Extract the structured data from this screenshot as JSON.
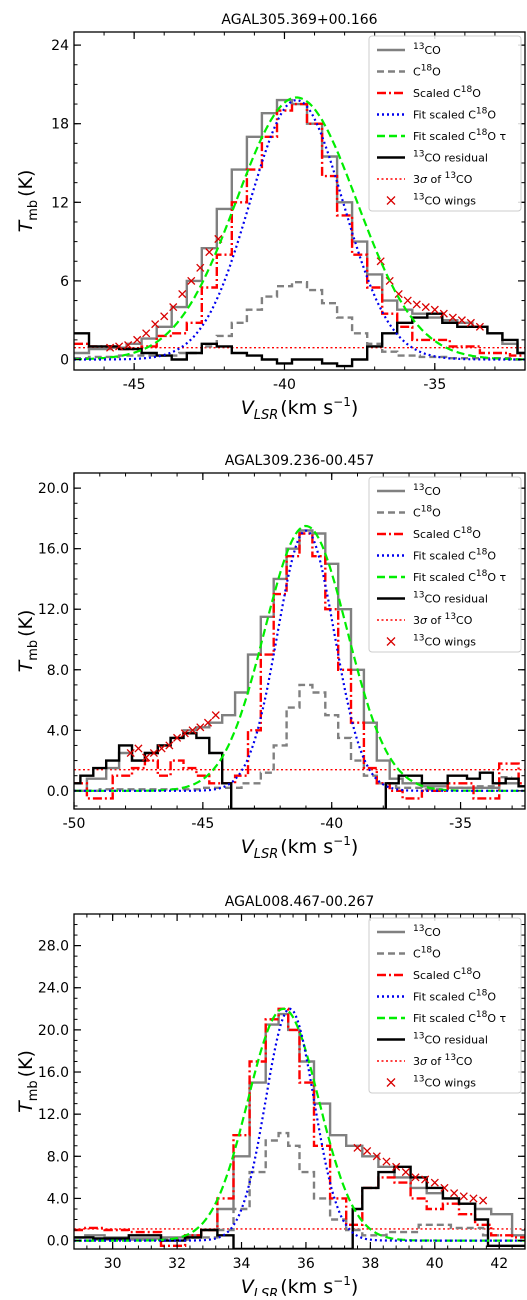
{
  "chart_data": [
    {
      "type": "line",
      "title": "AGAL305.369+00.166",
      "xlabel": "V_LSR (km s^-1)",
      "ylabel": "T_mb (K)",
      "xlim": [
        -47,
        -32
      ],
      "ylim": [
        -0.8,
        25
      ],
      "xticks": [
        -45,
        -40,
        -35
      ],
      "xtick_labels": [
        "-45",
        "-40",
        "-35"
      ],
      "yticks": [
        0,
        6,
        12,
        18,
        24
      ],
      "ytick_labels": [
        "0",
        "6",
        "12",
        "18",
        "24"
      ],
      "legend_position": "top-right",
      "legend": [
        "13CO",
        "C18O",
        "Scaled C18O",
        "Fit scaled C18O",
        "Fit scaled C18O τ",
        "13CO residual",
        "3σ of 13CO",
        "13CO wings"
      ],
      "sigma3": 0.9,
      "gauss": {
        "center": -39.6,
        "sigma": 1.55,
        "amp": 19.8
      },
      "gauss_tau": {
        "center": -39.6,
        "sigma": 2.0,
        "amp": 20.0
      },
      "series": [
        {
          "name": "13CO",
          "x": [
            -47,
            -46,
            -45.5,
            -45,
            -44.5,
            -44,
            -43.5,
            -43,
            -42.5,
            -42,
            -41.5,
            -41,
            -40.5,
            -40,
            -39.5,
            -39,
            -38.5,
            -38,
            -37.5,
            -37,
            -36.5,
            -36,
            -35.5,
            -35,
            -34.5,
            -34,
            -33.5,
            -33,
            -32.5,
            -32
          ],
          "y": [
            0.5,
            0.8,
            0.9,
            1.2,
            1.6,
            2.5,
            4.0,
            6.0,
            8.5,
            11.5,
            14.5,
            17.0,
            18.8,
            19.8,
            19.5,
            18.0,
            15.5,
            12.0,
            9.0,
            6.5,
            4.5,
            3.8,
            3.5,
            3.2,
            3.0,
            2.8,
            2.5,
            2.0,
            1.2,
            0.5
          ]
        },
        {
          "name": "C18O",
          "x": [
            -47,
            -46,
            -45,
            -44,
            -43,
            -42.5,
            -42,
            -41.5,
            -41,
            -40.5,
            -40,
            -39.5,
            -39,
            -38.5,
            -38,
            -37.5,
            -37,
            -36.5,
            -36,
            -35,
            -34,
            -33,
            -32
          ],
          "y": [
            0.1,
            0.2,
            0.3,
            0.3,
            0.5,
            1.0,
            1.8,
            2.8,
            3.8,
            4.8,
            5.6,
            5.9,
            5.3,
            4.3,
            3.2,
            2.0,
            1.2,
            0.6,
            0.3,
            0.2,
            0.1,
            0.1,
            0.0
          ]
        },
        {
          "name": "Scaled C18O",
          "x": [
            -47,
            -46,
            -45,
            -44.5,
            -44,
            -43.5,
            -43,
            -42.5,
            -42,
            -41.5,
            -41,
            -40.5,
            -40,
            -39.5,
            -39,
            -38.5,
            -38,
            -37.5,
            -37,
            -36.5,
            -36,
            -35.5,
            -35,
            -34,
            -33,
            -32
          ],
          "y": [
            1.2,
            1.0,
            0.8,
            1.0,
            1.8,
            2.0,
            2.8,
            5.5,
            8.0,
            12.0,
            14.5,
            17.0,
            19.0,
            19.5,
            18.0,
            14.0,
            11.0,
            8.0,
            5.5,
            3.5,
            2.5,
            1.5,
            1.5,
            1.0,
            0.5,
            0.3
          ]
        },
        {
          "name": "13CO residual",
          "x": [
            -47,
            -46,
            -45,
            -44.5,
            -44,
            -43.5,
            -43,
            -42.5,
            -42,
            -41.5,
            -41,
            -40.5,
            -40,
            -39.5,
            -39,
            -38.5,
            -38,
            -37.5,
            -37,
            -36.5,
            -36,
            -35.5,
            -35,
            -34.5,
            -34,
            -33.5,
            -33,
            -32.5,
            -32
          ],
          "y": [
            2.0,
            1.0,
            0.8,
            0.5,
            0.3,
            0.0,
            0.5,
            1.2,
            1.0,
            0.5,
            0.3,
            0.0,
            -0.3,
            0.0,
            0.0,
            -0.3,
            -0.5,
            0.0,
            1.0,
            2.0,
            2.8,
            3.2,
            3.5,
            2.8,
            2.5,
            2.5,
            2.0,
            1.5,
            0.5
          ]
        },
        {
          "name": "13CO wings",
          "x": [
            -45.8,
            -45.5,
            -45.2,
            -44.9,
            -44.6,
            -44.3,
            -44.0,
            -43.7,
            -43.4,
            -43.1,
            -42.8,
            -42.5,
            -42.2,
            -36.8,
            -36.5,
            -36.2,
            -35.9,
            -35.6,
            -35.3,
            -35.0,
            -34.7,
            -34.4,
            -34.1,
            -33.8,
            -33.5
          ],
          "y": [
            0.9,
            1.0,
            1.1,
            1.5,
            2.0,
            2.7,
            3.3,
            4.0,
            5.0,
            6.0,
            7.0,
            8.2,
            9.2,
            7.5,
            6.0,
            5.0,
            4.5,
            4.2,
            4.0,
            3.8,
            3.5,
            3.2,
            3.0,
            2.8,
            2.5
          ]
        }
      ]
    },
    {
      "type": "line",
      "title": "AGAL309.236-00.457",
      "xlabel": "V_LSR (km s^-1)",
      "ylabel": "T_mb (K)",
      "xlim": [
        -50,
        -32.5
      ],
      "ylim": [
        -1.2,
        21
      ],
      "xticks": [
        -50,
        -45,
        -40,
        -35
      ],
      "xtick_labels": [
        "-50",
        "-45",
        "-40",
        "-35"
      ],
      "yticks": [
        0,
        4,
        8,
        12,
        16,
        20
      ],
      "ytick_labels": [
        "0.0",
        "4.0",
        "8.0",
        "12.0",
        "16.0",
        "20.0"
      ],
      "legend_position": "top-right",
      "legend": [
        "13CO",
        "C18O",
        "Scaled C18O",
        "Fit scaled C18O",
        "Fit scaled C18O τ",
        "13CO residual",
        "3σ of 13CO",
        "13CO wings"
      ],
      "sigma3": 1.4,
      "gauss": {
        "center": -41.0,
        "sigma": 1.1,
        "amp": 17.2
      },
      "gauss_tau": {
        "center": -41.0,
        "sigma": 1.6,
        "amp": 17.5
      },
      "series": [
        {
          "name": "13CO",
          "x": [
            -50,
            -49,
            -48.5,
            -48,
            -47.5,
            -47,
            -46.5,
            -46,
            -45.5,
            -45,
            -44.5,
            -44,
            -43.5,
            -43,
            -42.5,
            -42,
            -41.5,
            -41,
            -40.5,
            -40,
            -39.5,
            -39,
            -38.5,
            -38,
            -37.5,
            -37,
            -36,
            -35,
            -34,
            -33,
            -32.5
          ],
          "y": [
            0.0,
            0.8,
            1.5,
            2.5,
            2.0,
            2.5,
            3.0,
            3.5,
            4.0,
            4.2,
            4.5,
            5.0,
            6.5,
            9.0,
            11.5,
            14.0,
            16.0,
            17.2,
            17.0,
            15.0,
            12.0,
            8.0,
            4.5,
            2.0,
            0.8,
            0.5,
            0.3,
            0.2,
            0.2,
            0.5,
            0.3
          ]
        },
        {
          "name": "C18O",
          "x": [
            -50,
            -48,
            -46,
            -44,
            -43,
            -42.5,
            -42,
            -41.5,
            -41,
            -40.5,
            -40,
            -39.5,
            -39,
            -38.5,
            -38,
            -37,
            -36,
            -35,
            -34,
            -33
          ],
          "y": [
            0.0,
            0.1,
            0.1,
            0.2,
            0.5,
            1.2,
            3.0,
            5.5,
            7.0,
            6.5,
            5.0,
            3.5,
            2.0,
            1.0,
            0.5,
            0.2,
            0.1,
            0.2,
            0.3,
            0.9
          ]
        },
        {
          "name": "Scaled C18O",
          "x": [
            -50,
            -49,
            -48,
            -47.5,
            -47,
            -46.5,
            -46,
            -45.5,
            -45,
            -44.5,
            -44,
            -43.5,
            -43,
            -42.5,
            -42,
            -41.5,
            -41,
            -40.5,
            -40,
            -39.5,
            -39,
            -38.5,
            -38,
            -37.5,
            -37,
            -36,
            -35,
            -34,
            -33,
            -32.5
          ],
          "y": [
            0.5,
            -0.5,
            1.0,
            1.5,
            2.0,
            1.0,
            2.0,
            1.5,
            1.0,
            0.5,
            0.5,
            1.0,
            4.0,
            9.0,
            13.0,
            15.5,
            17.0,
            15.5,
            12.0,
            8.0,
            4.5,
            1.5,
            0.5,
            0.0,
            -0.5,
            0.0,
            0.5,
            -0.5,
            1.8,
            0.5
          ]
        },
        {
          "name": "13CO residual",
          "x": [
            -50,
            -49.5,
            -49,
            -48.5,
            -48,
            -47.5,
            -47,
            -46.5,
            -46,
            -45.5,
            -45,
            -44.5,
            -44,
            -43.8,
            -38,
            -37.8,
            -37,
            -36,
            -35,
            -34.5,
            -34,
            -33.5,
            -33,
            -32.5
          ],
          "y": [
            0.5,
            1.0,
            1.5,
            2.0,
            3.0,
            2.0,
            2.5,
            3.0,
            3.5,
            3.8,
            3.5,
            2.5,
            0.5,
            -1.2,
            -1.2,
            0.5,
            1.0,
            0.5,
            1.0,
            0.8,
            1.2,
            0.5,
            0.8,
            0.3
          ]
        },
        {
          "name": "13CO wings",
          "x": [
            -47.8,
            -47.5,
            -47.2,
            -46.9,
            -46.6,
            -46.3,
            -46.0,
            -45.7,
            -45.4,
            -45.1,
            -44.8,
            -44.5
          ],
          "y": [
            2.5,
            2.8,
            2.2,
            2.5,
            2.8,
            3.0,
            3.5,
            3.8,
            4.0,
            4.2,
            4.5,
            5.0
          ]
        }
      ]
    },
    {
      "type": "line",
      "title": "AGAL008.467-00.267",
      "xlabel": "V_LSR (km s^-1)",
      "ylabel": "T_mb (K)",
      "xlim": [
        28.8,
        42.8
      ],
      "ylim": [
        -0.8,
        31
      ],
      "xticks": [
        30,
        32,
        34,
        36,
        38,
        40,
        42
      ],
      "xtick_labels": [
        "30",
        "32",
        "34",
        "36",
        "38",
        "40",
        "42"
      ],
      "yticks": [
        0,
        4,
        8,
        12,
        16,
        20,
        24,
        28
      ],
      "ytick_labels": [
        "0.0",
        "4.0",
        "8.0",
        "12.0",
        "16.0",
        "20.0",
        "24.0",
        "28.0"
      ],
      "legend_position": "top-right",
      "legend": [
        "13CO",
        "C18O",
        "Scaled C18O",
        "Fit scaled C18O",
        "Fit scaled C18O τ",
        "13CO residual",
        "3σ of 13CO",
        "13CO wings"
      ],
      "sigma3": 1.1,
      "gauss": {
        "center": 35.5,
        "sigma": 0.75,
        "amp": 22.0
      },
      "gauss_tau": {
        "center": 35.3,
        "sigma": 1.1,
        "amp": 22.0
      },
      "series": [
        {
          "name": "13CO",
          "x": [
            28.8,
            29.5,
            30,
            31,
            32,
            32.5,
            33,
            33.5,
            34,
            34.5,
            35,
            35.3,
            35.6,
            36,
            36.5,
            37,
            37.5,
            38,
            38.5,
            39,
            39.5,
            40,
            40.5,
            41,
            41.5,
            42,
            42.8
          ],
          "y": [
            0.3,
            0.5,
            0.3,
            0.2,
            0.3,
            0.5,
            1.0,
            3.0,
            8.0,
            15.0,
            20.5,
            21.5,
            20.0,
            17.0,
            13.0,
            10.0,
            9.0,
            8.0,
            7.0,
            6.0,
            5.0,
            4.5,
            4.0,
            3.5,
            3.0,
            2.5,
            0.5
          ]
        },
        {
          "name": "C18O",
          "x": [
            28.8,
            30,
            32,
            33,
            33.5,
            34,
            34.5,
            35,
            35.3,
            35.6,
            36,
            36.5,
            37,
            37.5,
            38,
            39,
            40,
            41,
            42
          ],
          "y": [
            0.0,
            0.1,
            0.1,
            0.3,
            1.0,
            3.0,
            6.5,
            9.5,
            10.2,
            9.0,
            6.5,
            4.0,
            2.0,
            1.0,
            0.5,
            0.8,
            1.5,
            1.2,
            0.5
          ]
        },
        {
          "name": "Scaled C18O",
          "x": [
            28.8,
            29.5,
            30,
            31,
            32,
            32.5,
            33,
            33.5,
            34,
            34.5,
            35,
            35.3,
            35.6,
            36,
            36.5,
            37,
            37.5,
            38,
            38.5,
            39,
            39.5,
            40,
            40.5,
            41,
            41.5,
            42,
            42.8
          ],
          "y": [
            1.0,
            1.2,
            1.0,
            0.8,
            -0.5,
            0.5,
            1.0,
            4.0,
            10.0,
            17.0,
            21.0,
            22.0,
            20.0,
            15.0,
            9.0,
            4.0,
            1.5,
            5.0,
            6.0,
            5.5,
            4.0,
            3.0,
            3.5,
            2.5,
            1.5,
            0.5,
            0.3
          ]
        },
        {
          "name": "13CO residual",
          "x": [
            28.8,
            30,
            31,
            32,
            32.5,
            33,
            33.5,
            34,
            37.4,
            37.5,
            38,
            38.5,
            39,
            39.5,
            40,
            40.5,
            41,
            41.5,
            41.8,
            42.8
          ],
          "y": [
            0.3,
            0.2,
            0.5,
            0.0,
            0.3,
            1.0,
            0.5,
            -0.8,
            -0.8,
            3.0,
            5.0,
            6.5,
            7.0,
            6.0,
            5.0,
            4.0,
            3.5,
            2.0,
            -0.5,
            -0.5
          ]
        },
        {
          "name": "13CO wings",
          "x": [
            37.6,
            37.9,
            38.2,
            38.5,
            38.8,
            39.1,
            39.4,
            39.7,
            40.0,
            40.3,
            40.6,
            40.9,
            41.2,
            41.5
          ],
          "y": [
            8.8,
            8.5,
            8.0,
            7.5,
            7.0,
            6.5,
            6.0,
            5.8,
            5.5,
            5.0,
            4.5,
            4.2,
            4.0,
            3.8
          ]
        }
      ]
    }
  ]
}
